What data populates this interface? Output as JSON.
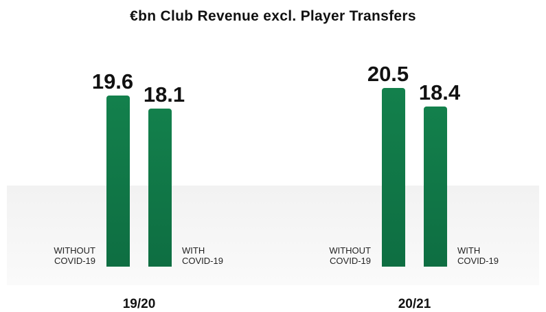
{
  "chart_data": {
    "type": "bar",
    "title": "€bn Club Revenue excl. Player Transfers",
    "categories": [
      "19/20",
      "20/21"
    ],
    "series": [
      {
        "name": "WITHOUT COVID-19",
        "color": "#0e6e42",
        "values": [
          19.6,
          20.5
        ]
      },
      {
        "name": "WITH COVID-19",
        "color": "#0e6e42",
        "values": [
          18.1,
          18.4
        ]
      }
    ]
  }
}
